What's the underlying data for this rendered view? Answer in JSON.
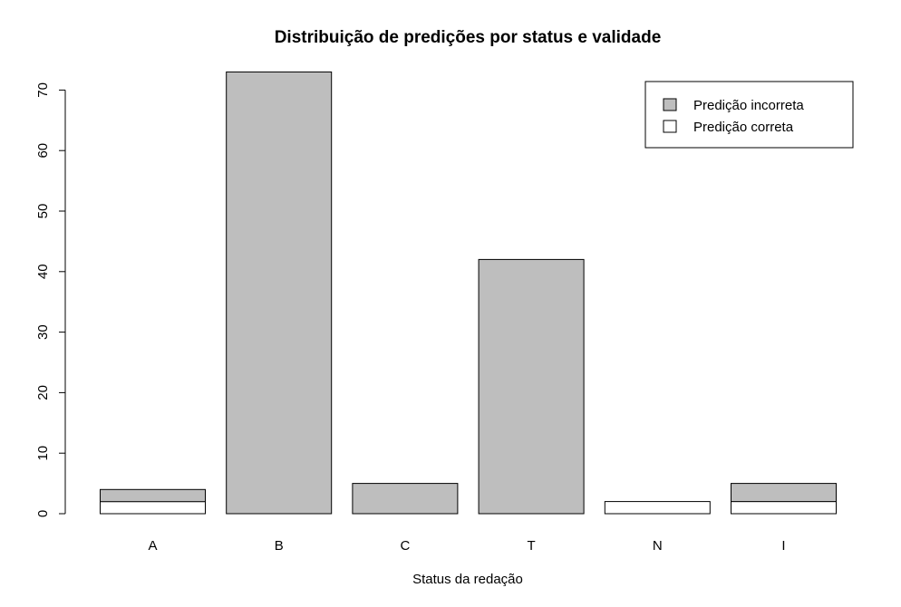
{
  "chart_data": {
    "type": "bar",
    "stacked": true,
    "title": "Distribuição de predições por status e validade",
    "xlabel": "Status da redação",
    "ylabel": "",
    "categories": [
      "A",
      "B",
      "C",
      "T",
      "N",
      "I"
    ],
    "series": [
      {
        "name": "Predição correta",
        "color": "#ffffff",
        "values": [
          2,
          0,
          0,
          0,
          2,
          2
        ]
      },
      {
        "name": "Predição incorreta",
        "color": "#bebebe",
        "values": [
          2,
          73,
          5,
          42,
          0,
          3
        ]
      }
    ],
    "ylim": [
      0,
      70
    ],
    "yticks": [
      "0",
      "10",
      "20",
      "30",
      "40",
      "50",
      "60",
      "70"
    ],
    "grid": false,
    "legend": {
      "position": "top-right",
      "entries": [
        {
          "name": "Predição incorreta",
          "color": "#bebebe"
        },
        {
          "name": "Predição correta",
          "color": "#ffffff"
        }
      ]
    }
  }
}
